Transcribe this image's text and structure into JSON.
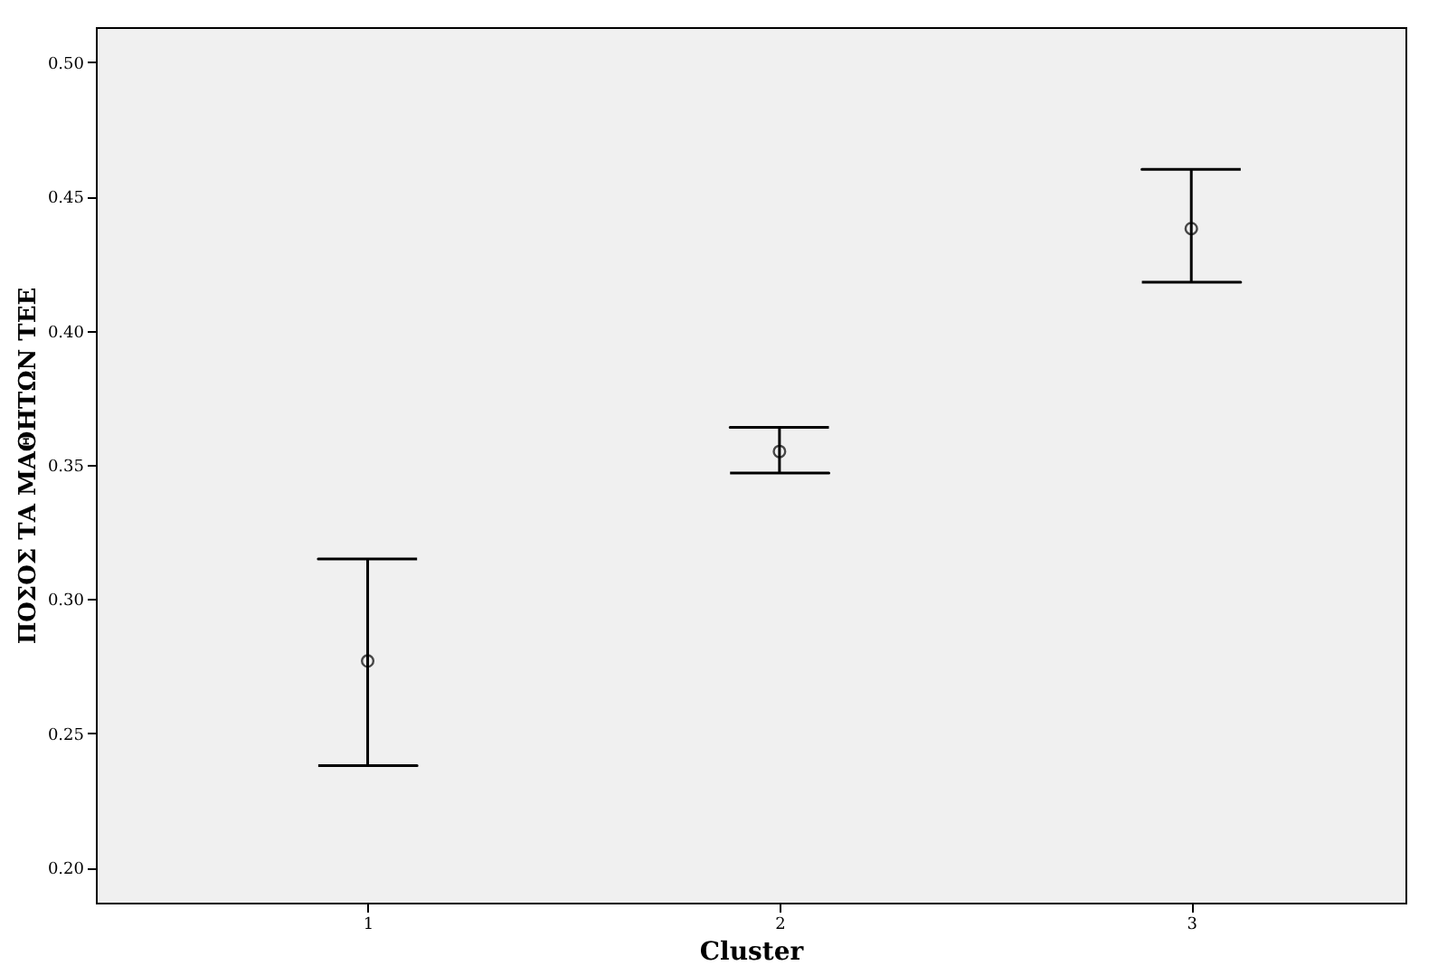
{
  "chart_data": {
    "type": "scatter",
    "xlabel": "Cluster",
    "ylabel": "ΠΟΣΟΣ ΤΑ ΜΑΘΗΤΩΝ ΤΕΕ",
    "x": [
      1,
      2,
      3
    ],
    "values": [
      0.277,
      0.355,
      0.438
    ],
    "errors": [
      [
        0.238,
        0.315
      ],
      [
        0.347,
        0.364
      ],
      [
        0.418,
        0.46
      ]
    ],
    "color": "#000000",
    "marker": "circle",
    "xlim": [
      0.34,
      3.52
    ],
    "xticks": [
      1,
      2,
      3
    ],
    "ylim": [
      0.187,
      0.513
    ],
    "yticks": [
      {
        "value": 0.2,
        "label": "0.20"
      },
      0.25,
      {
        "value": 0.3,
        "label": "0.30"
      },
      0.35,
      {
        "value": 0.4,
        "label": "0.40"
      },
      0.45,
      {
        "value": 0.5,
        "label": "0.50"
      }
    ],
    "grid": false
  }
}
